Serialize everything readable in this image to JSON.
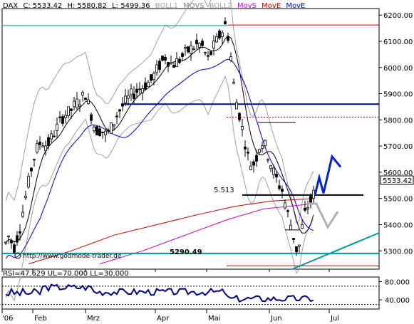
{
  "header": {
    "symbol": "DAX",
    "close_label": "C: 5533.42",
    "high_label": "H: 5580.82",
    "low_label": "L: 5499.36",
    "ind_boll1": "BOLL1",
    "ind_movs": "MOVS",
    "ind_boll2": "BOLL2",
    "ind_movs_colored": "MovS",
    "ind_move_red": "MovE",
    "ind_move_blue": "MovE"
  },
  "annotations": {
    "level_5513": "5.513",
    "level_5290": "5290.49",
    "url": "http://www.godmode-trader.de",
    "last_price_badge": "5533.42"
  },
  "rsi_header": "RSI=47.629 UL=70.000 LL=30.000",
  "colors": {
    "candle": "#000000",
    "boll": "#a0a0a0",
    "movs": "#000000",
    "move_red": "#c00000",
    "move_blue": "#0000cc",
    "movs_magenta": "#cc00cc",
    "support_line": "#000080",
    "teal_line": "#009999",
    "forecast": "#0022cc",
    "forecast_gray": "#b0b0b0"
  },
  "chart_data": {
    "type": "candlestick",
    "title": "",
    "y_axis": {
      "ticks": [
        "6200.00",
        "6100.00",
        "6000.00",
        "5900.00",
        "5800.00",
        "5700.00",
        "5600.00",
        "5500.00",
        "5400.00",
        "5300.00"
      ],
      "range": [
        5230,
        6225
      ]
    },
    "x_axis": {
      "labels": [
        "'06",
        "Feb",
        "Mrz",
        "Apr",
        "Mai",
        "Jun",
        "Jul"
      ]
    },
    "rsi": {
      "ticks": [
        "80.000",
        "40.000"
      ],
      "range": [
        20,
        90
      ],
      "upper_limit": 70,
      "lower_limit": 30
    },
    "horizontal_levels": [
      {
        "value": 6162,
        "color": "red"
      },
      {
        "value": 6160,
        "color": "teal"
      },
      {
        "value": 5860,
        "color": "navy"
      },
      {
        "value": 5810,
        "color": "red-dashed"
      },
      {
        "value": 5513,
        "color": "black"
      },
      {
        "value": 5290,
        "color": "teal"
      },
      {
        "value": 5243,
        "color": "red"
      }
    ]
  }
}
